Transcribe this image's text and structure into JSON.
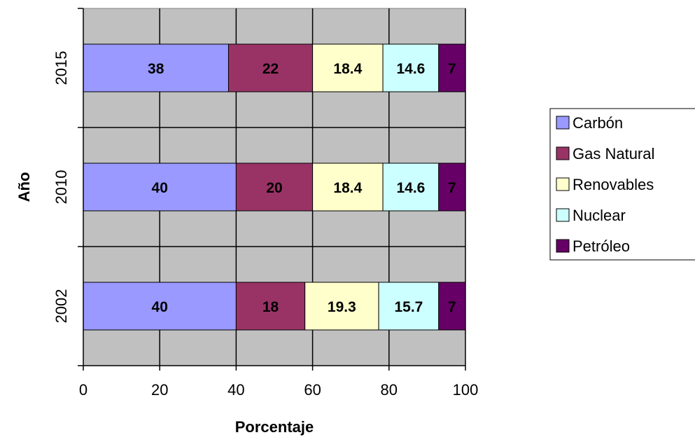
{
  "chart_data": {
    "type": "bar",
    "orientation": "horizontal",
    "stacked": true,
    "categories": [
      "2002",
      "2010",
      "2015"
    ],
    "series": [
      {
        "name": "Carbón",
        "values": [
          40,
          40,
          38
        ],
        "color": "#9999ff"
      },
      {
        "name": "Gas Natural",
        "values": [
          18,
          20,
          22
        ],
        "color": "#993366"
      },
      {
        "name": "Renovables",
        "values": [
          19.3,
          18.4,
          18.4
        ],
        "color": "#ffffcc"
      },
      {
        "name": "Nuclear",
        "values": [
          15.7,
          14.6,
          14.6
        ],
        "color": "#ccffff"
      },
      {
        "name": "Petróleo",
        "values": [
          7,
          7,
          7
        ],
        "color": "#660066"
      }
    ],
    "xlabel": "Porcentaje",
    "ylabel": "Año",
    "xlim": [
      0,
      100
    ],
    "xticks": [
      "0",
      "20",
      "40",
      "60",
      "80",
      "100"
    ],
    "grid": true,
    "plot_background": "#c0c0c0",
    "legend_position": "right"
  }
}
